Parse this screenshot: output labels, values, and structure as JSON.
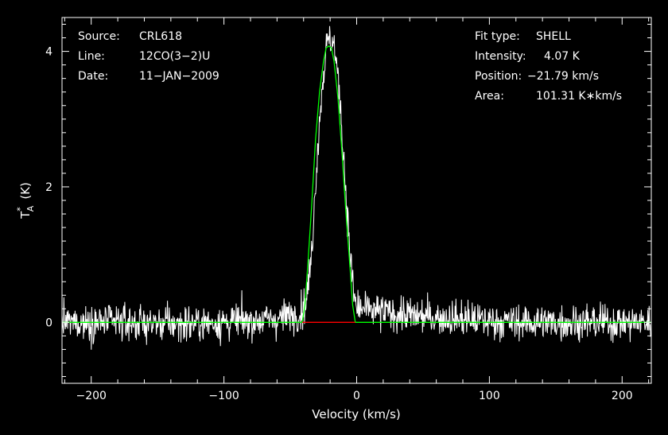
{
  "chart_data": {
    "type": "line",
    "xlabel": "Velocity (km/s)",
    "ylabel_main": "T",
    "ylabel_sub": "A",
    "ylabel_sup": "*",
    "ylabel_unit": "(K)",
    "xlim": [
      -222,
      222
    ],
    "ylim": [
      -0.9,
      4.5
    ],
    "xticks": [
      -200,
      -100,
      0,
      100,
      200
    ],
    "yticks": [
      0,
      2,
      4
    ],
    "info_left": [
      {
        "label": "Source:",
        "value": "CRL618"
      },
      {
        "label": "Line:",
        "value": "12CO(3−2)U"
      },
      {
        "label": "Date:",
        "value": "11−JAN−2009"
      }
    ],
    "info_right": [
      {
        "label": "Fit type:",
        "value": "SHELL"
      },
      {
        "label": "Intensity:",
        "value": "4.07 K"
      },
      {
        "label": "Position:",
        "value": "−21.79 km/s"
      },
      {
        "label": "Area:",
        "value": "101.31 K∗km/s"
      }
    ],
    "series": [
      {
        "role": "observed spectrum",
        "color": "#ffffff",
        "noise_rms": 0.13,
        "baseline": [
          [
            -222,
            0.0
          ],
          [
            -180,
            0.0
          ],
          [
            -140,
            -0.02
          ],
          [
            -100,
            0.0
          ],
          [
            -60,
            0.05
          ],
          [
            -42,
            0.15
          ],
          [
            -38,
            0.3
          ],
          [
            -34,
            1.0
          ],
          [
            -30,
            2.4
          ],
          [
            -26,
            3.5
          ],
          [
            -22,
            4.15
          ],
          [
            -20,
            4.2
          ],
          [
            -17,
            4.1
          ],
          [
            -13,
            3.4
          ],
          [
            -9,
            2.2
          ],
          [
            -5,
            1.0
          ],
          [
            -2,
            0.4
          ],
          [
            0,
            0.2
          ],
          [
            20,
            0.15
          ],
          [
            40,
            0.1
          ],
          [
            80,
            0.05
          ],
          [
            120,
            0.0
          ],
          [
            160,
            0.0
          ],
          [
            222,
            0.0
          ]
        ]
      },
      {
        "role": "shell fit",
        "color": "#00ff00",
        "points": [
          [
            -222,
            0.0
          ],
          [
            -41,
            0.0
          ],
          [
            -39,
            0.25
          ],
          [
            -37,
            0.8
          ],
          [
            -34,
            1.7
          ],
          [
            -31,
            2.7
          ],
          [
            -28,
            3.4
          ],
          [
            -25,
            3.85
          ],
          [
            -23,
            4.05
          ],
          [
            -21,
            4.08
          ],
          [
            -19,
            4.05
          ],
          [
            -17,
            3.85
          ],
          [
            -14,
            3.3
          ],
          [
            -11,
            2.5
          ],
          [
            -8,
            1.6
          ],
          [
            -5,
            0.8
          ],
          [
            -3,
            0.25
          ],
          [
            -1,
            0.0
          ],
          [
            222,
            0.0
          ]
        ]
      },
      {
        "role": "base",
        "color": "#ff0000",
        "points": [
          [
            -41,
            0.0
          ],
          [
            -1,
            0.0
          ]
        ]
      }
    ]
  }
}
